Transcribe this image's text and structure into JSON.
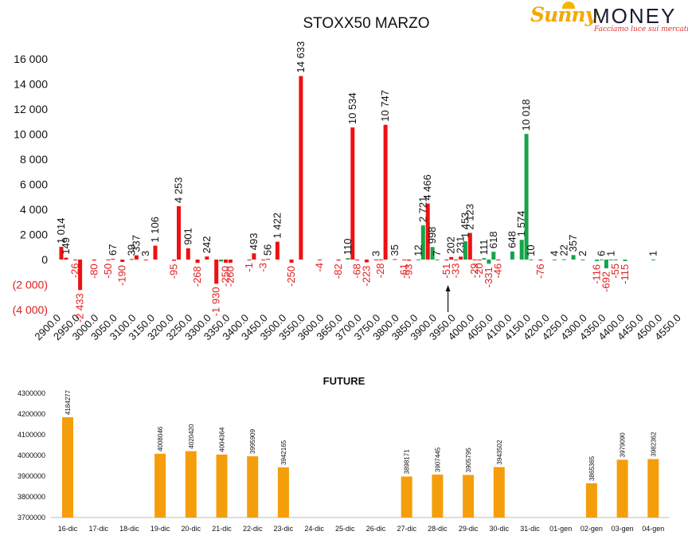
{
  "logo": {
    "brand_part1": "Sunny",
    "brand_part2": "MONEY",
    "tagline": "Facciamo luce sui mercati"
  },
  "chart_data": [
    {
      "type": "bar",
      "title": "STOXX50 MARZO",
      "categories": [
        "2900.0",
        "2950.0",
        "3000.0",
        "3050.0",
        "3100.0",
        "3150.0",
        "3200.0",
        "3250.0",
        "3300.0",
        "3350.0",
        "3400.0",
        "3450.0",
        "3500.0",
        "3550.0",
        "3600.0",
        "3650.0",
        "3700.0",
        "3750.0",
        "3800.0",
        "3850.0",
        "3900.0",
        "3950.0",
        "4000.0",
        "4050.0",
        "4100.0",
        "4150.0",
        "4200.0",
        "4250.0",
        "4300.0",
        "4350.0",
        "4400.0",
        "4450.0",
        "4500.0",
        "4550.0"
      ],
      "ylim": [
        -4000,
        16000
      ],
      "yticks": [
        {
          "value": 16000,
          "label": "16 000"
        },
        {
          "value": 14000,
          "label": "14 000"
        },
        {
          "value": 12000,
          "label": "12 000"
        },
        {
          "value": 10000,
          "label": "10 000"
        },
        {
          "value": 8000,
          "label": "8 000"
        },
        {
          "value": 6000,
          "label": "6 000"
        },
        {
          "value": 4000,
          "label": "4 000"
        },
        {
          "value": 2000,
          "label": "2 000"
        },
        {
          "value": 0,
          "label": "0"
        },
        {
          "value": -2000,
          "label": "(2 000)"
        },
        {
          "value": -4000,
          "label": "(4 000)"
        }
      ],
      "series": [
        {
          "color": "#ee1111",
          "points": [
            {
              "x": 0.0,
              "value": 1014,
              "label": "1 014"
            },
            {
              "x": 0.25,
              "value": 149,
              "label": "149"
            },
            {
              "x": 0.75,
              "value": -26,
              "label": "-26"
            },
            {
              "x": 1.0,
              "value": -2433,
              "label": "-2 433"
            },
            {
              "x": 1.75,
              "value": -80,
              "label": "-80"
            },
            {
              "x": 2.5,
              "value": -50,
              "label": "-50"
            },
            {
              "x": 2.75,
              "value": 67,
              "label": "67"
            },
            {
              "x": 3.25,
              "value": -190,
              "label": "-190"
            },
            {
              "x": 3.75,
              "value": 39,
              "label": "39"
            },
            {
              "x": 4.0,
              "value": 337,
              "label": "337"
            },
            {
              "x": 4.5,
              "value": 3,
              "label": "3"
            },
            {
              "x": 5.0,
              "value": 1106,
              "label": "1 106"
            },
            {
              "x": 6.0,
              "value": -95,
              "label": "-95"
            },
            {
              "x": 6.25,
              "value": 4253,
              "label": "4 253"
            },
            {
              "x": 6.75,
              "value": 901,
              "label": "901"
            },
            {
              "x": 7.25,
              "value": -268,
              "label": "-268"
            },
            {
              "x": 7.75,
              "value": 242,
              "label": "242"
            },
            {
              "x": 8.25,
              "value": -1930,
              "label": "-1 930"
            },
            {
              "x": 8.75,
              "value": -250,
              "label": "-250"
            },
            {
              "x": 9.0,
              "value": -260,
              "label": "-260"
            },
            {
              "x": 10.0,
              "value": -1,
              "label": "-1"
            },
            {
              "x": 10.25,
              "value": 493,
              "label": "493"
            },
            {
              "x": 10.75,
              "value": -3,
              "label": "-3"
            },
            {
              "x": 11.0,
              "value": 56,
              "label": "56"
            },
            {
              "x": 11.5,
              "value": 1422,
              "label": "1 422"
            },
            {
              "x": 12.25,
              "value": -250,
              "label": "-250"
            },
            {
              "x": 12.75,
              "value": 14633,
              "label": "14 633"
            },
            {
              "x": 13.75,
              "value": -4,
              "label": "-4"
            },
            {
              "x": 14.75,
              "value": -82,
              "label": "-82"
            },
            {
              "x": 15.5,
              "value": 10534,
              "label": "10 534"
            },
            {
              "x": 15.75,
              "value": -68,
              "label": "-68"
            },
            {
              "x": 16.25,
              "value": -223,
              "label": "-223"
            },
            {
              "x": 16.75,
              "value": 3,
              "label": "3"
            },
            {
              "x": 17.0,
              "value": -28,
              "label": "-28"
            },
            {
              "x": 17.25,
              "value": 10747,
              "label": "10 747"
            },
            {
              "x": 17.75,
              "value": 35,
              "label": "35"
            },
            {
              "x": 18.25,
              "value": -61,
              "label": "-61"
            },
            {
              "x": 18.5,
              "value": -93,
              "label": "-93"
            },
            {
              "x": 19.5,
              "value": 4466,
              "label": "4 466"
            },
            {
              "x": 20.5,
              "value": -51,
              "label": "-51"
            },
            {
              "x": 20.75,
              "value": 202,
              "label": "202"
            },
            {
              "x": 21.0,
              "value": -33,
              "label": "-33"
            },
            {
              "x": 21.25,
              "value": 231,
              "label": "231"
            },
            {
              "x": 21.75,
              "value": 2123,
              "label": "2 123"
            },
            {
              "x": 22.0,
              "value": -29,
              "label": "-29"
            },
            {
              "x": 22.25,
              "value": -20,
              "label": "-20"
            },
            {
              "x": 23.25,
              "value": -46,
              "label": "-46"
            },
            {
              "x": 25.5,
              "value": -76,
              "label": "-76"
            }
          ]
        },
        {
          "color": "#16a34a",
          "points": [
            {
              "x": 8.5,
              "value": -150,
              "label": ""
            },
            {
              "x": 15.25,
              "value": 110,
              "label": "110"
            },
            {
              "x": 19.25,
              "value": 2721,
              "label": "2 721"
            },
            {
              "x": 19.0,
              "value": 12,
              "label": "12"
            },
            {
              "x": 19.75,
              "value": 998,
              "label": "998"
            },
            {
              "x": 20.0,
              "value": 7,
              "label": "7"
            },
            {
              "x": 21.5,
              "value": 1453,
              "label": "1 453"
            },
            {
              "x": 22.5,
              "value": 111,
              "label": "111"
            },
            {
              "x": 22.75,
              "value": -331,
              "label": "-331"
            },
            {
              "x": 23.0,
              "value": 618,
              "label": "618"
            },
            {
              "x": 24.0,
              "value": 648,
              "label": "648"
            },
            {
              "x": 24.5,
              "value": 1574,
              "label": "1 574"
            },
            {
              "x": 24.75,
              "value": 10018,
              "label": "10 018"
            },
            {
              "x": 25.0,
              "value": 10,
              "label": "10"
            },
            {
              "x": 26.25,
              "value": 4,
              "label": "4"
            },
            {
              "x": 26.75,
              "value": 22,
              "label": "22"
            },
            {
              "x": 27.25,
              "value": 357,
              "label": "357"
            },
            {
              "x": 27.75,
              "value": 2,
              "label": "2"
            },
            {
              "x": 28.5,
              "value": -116,
              "label": "-116"
            },
            {
              "x": 28.75,
              "value": 6,
              "label": "6"
            },
            {
              "x": 29.0,
              "value": -692,
              "label": "-692"
            },
            {
              "x": 29.25,
              "value": 1,
              "label": "1"
            },
            {
              "x": 29.5,
              "value": -55,
              "label": "-55"
            },
            {
              "x": 30.0,
              "value": -115,
              "label": "-115"
            },
            {
              "x": 31.5,
              "value": 1,
              "label": "1"
            }
          ]
        }
      ],
      "annotations": [
        {
          "type": "arrow",
          "x": 21.0,
          "from_value": -4000,
          "to_value": -2400
        }
      ]
    },
    {
      "type": "bar",
      "title": "FUTURE",
      "categories": [
        "16-dic",
        "17-dic",
        "18-dic",
        "19-dic",
        "20-dic",
        "21-dic",
        "22-dic",
        "23-dic",
        "24-dic",
        "25-dic",
        "26-dic",
        "27-dic",
        "28-dic",
        "29-dic",
        "30-dic",
        "31-dic",
        "01-gen",
        "02-gen",
        "03-gen",
        "04-gen"
      ],
      "values": [
        4184277,
        null,
        null,
        4008046,
        4020420,
        4004364,
        3995909,
        3942165,
        null,
        null,
        null,
        3898171,
        3907445,
        3905795,
        3943502,
        null,
        null,
        3865365,
        3979090,
        3982362
      ],
      "ylim": [
        3700000,
        4300000
      ],
      "yticks": [
        3700000,
        3800000,
        3900000,
        4000000,
        4100000,
        4200000,
        4300000
      ],
      "color": "#f59e0b"
    }
  ]
}
